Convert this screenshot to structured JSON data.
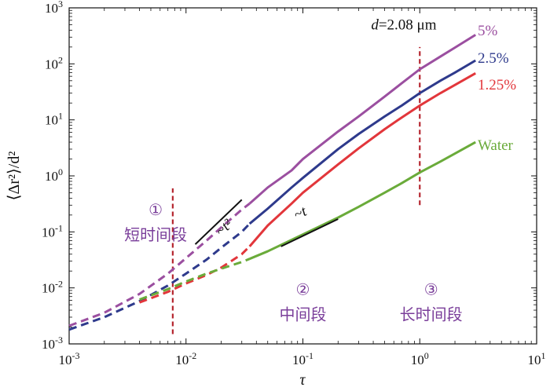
{
  "chart_data": {
    "type": "line",
    "title": "",
    "xlabel": "τ",
    "ylabel": "⟨Δr²⟩/d²",
    "xscale": "log",
    "yscale": "log",
    "xlim": [
      0.001,
      10
    ],
    "ylim": [
      0.001,
      1000
    ],
    "x_ticks": [
      {
        "value": 0.001,
        "base": "10",
        "exp": "-3"
      },
      {
        "value": 0.01,
        "base": "10",
        "exp": "-2"
      },
      {
        "value": 0.1,
        "base": "10",
        "exp": "-1"
      },
      {
        "value": 1,
        "base": "10",
        "exp": "0"
      },
      {
        "value": 10,
        "base": "10",
        "exp": "1"
      }
    ],
    "y_ticks": [
      {
        "value": 0.001,
        "base": "10",
        "exp": "-3"
      },
      {
        "value": 0.01,
        "base": "10",
        "exp": "-2"
      },
      {
        "value": 0.1,
        "base": "10",
        "exp": "-1"
      },
      {
        "value": 1,
        "base": "10",
        "exp": "0"
      },
      {
        "value": 10,
        "base": "10",
        "exp": "1"
      },
      {
        "value": 100,
        "base": "10",
        "exp": "2"
      },
      {
        "value": 1000,
        "base": "10",
        "exp": "3"
      }
    ],
    "series": [
      {
        "name": "5%",
        "color": "#9b4fa0",
        "dashed_until": 0.035,
        "points": [
          [
            0.001,
            0.0021
          ],
          [
            0.002,
            0.0036
          ],
          [
            0.004,
            0.0078
          ],
          [
            0.007,
            0.018
          ],
          [
            0.01,
            0.034
          ],
          [
            0.015,
            0.07
          ],
          [
            0.02,
            0.12
          ],
          [
            0.03,
            0.25
          ],
          [
            0.035,
            0.32
          ],
          [
            0.05,
            0.62
          ],
          [
            0.08,
            1.25
          ],
          [
            0.1,
            2.0
          ],
          [
            0.2,
            6.2
          ],
          [
            0.3,
            11.5
          ],
          [
            0.5,
            26
          ],
          [
            0.7,
            45
          ],
          [
            1.0,
            80
          ],
          [
            1.5,
            135
          ],
          [
            2.0,
            195
          ],
          [
            3.0,
            330
          ]
        ]
      },
      {
        "name": "2.5%",
        "color": "#2e3a8c",
        "dashed_until": 0.035,
        "points": [
          [
            0.001,
            0.0018
          ],
          [
            0.002,
            0.003
          ],
          [
            0.004,
            0.0058
          ],
          [
            0.007,
            0.011
          ],
          [
            0.01,
            0.018
          ],
          [
            0.015,
            0.032
          ],
          [
            0.02,
            0.052
          ],
          [
            0.03,
            0.1
          ],
          [
            0.035,
            0.14
          ],
          [
            0.05,
            0.26
          ],
          [
            0.08,
            0.62
          ],
          [
            0.1,
            0.92
          ],
          [
            0.2,
            3.0
          ],
          [
            0.3,
            5.6
          ],
          [
            0.5,
            11.5
          ],
          [
            0.7,
            18
          ],
          [
            1.0,
            30
          ],
          [
            1.5,
            50
          ],
          [
            2.0,
            70
          ],
          [
            3.0,
            115
          ]
        ]
      },
      {
        "name": "1.25%",
        "color": "#e2363b",
        "dashed_until": 0.035,
        "points": [
          [
            0.004,
            0.0055
          ],
          [
            0.007,
            0.0085
          ],
          [
            0.01,
            0.012
          ],
          [
            0.015,
            0.017
          ],
          [
            0.02,
            0.023
          ],
          [
            0.03,
            0.04
          ],
          [
            0.035,
            0.055
          ],
          [
            0.05,
            0.13
          ],
          [
            0.08,
            0.32
          ],
          [
            0.1,
            0.5
          ],
          [
            0.2,
            1.6
          ],
          [
            0.3,
            3.1
          ],
          [
            0.5,
            6.8
          ],
          [
            0.7,
            11
          ],
          [
            1.0,
            18
          ],
          [
            1.5,
            30
          ],
          [
            2.0,
            42
          ],
          [
            3.0,
            68
          ]
        ]
      },
      {
        "name": "Water",
        "color": "#6aab3a",
        "dashed_until": 0.035,
        "points": [
          [
            0.004,
            0.0062
          ],
          [
            0.007,
            0.0095
          ],
          [
            0.01,
            0.013
          ],
          [
            0.015,
            0.018
          ],
          [
            0.02,
            0.022
          ],
          [
            0.03,
            0.029
          ],
          [
            0.035,
            0.033
          ],
          [
            0.05,
            0.045
          ],
          [
            0.1,
            0.09
          ],
          [
            0.2,
            0.18
          ],
          [
            0.3,
            0.28
          ],
          [
            0.5,
            0.5
          ],
          [
            0.7,
            0.74
          ],
          [
            1.0,
            1.15
          ],
          [
            1.5,
            1.8
          ],
          [
            2.0,
            2.5
          ],
          [
            3.0,
            4.0
          ]
        ]
      }
    ],
    "legend": [
      {
        "label": "5%",
        "color": "#9b4fa0"
      },
      {
        "label": "2.5%",
        "color": "#2e3a8c"
      },
      {
        "label": "1.25%",
        "color": "#e2363b"
      },
      {
        "label": "Water",
        "color": "#6aab3a"
      }
    ],
    "vertical_lines": [
      {
        "x": 0.0077,
        "color": "#b5262f",
        "y_from": 0.0015,
        "y_to": 0.6
      },
      {
        "x": 1.0,
        "color": "#b5262f",
        "y_from": 0.3,
        "y_to": 200
      }
    ],
    "slope_guides": [
      {
        "label": "~t²",
        "x1": 0.012,
        "x2": 0.03,
        "slope": 2,
        "y_at_x1": 0.06
      },
      {
        "label": "~t",
        "x1": 0.065,
        "x2": 0.2,
        "slope": 1,
        "y_at_x1": 0.055
      }
    ],
    "annotations": [
      {
        "id": "diameter",
        "text": "d=2.08 μm",
        "var": "d",
        "rest": "=2.08 μm",
        "x": 0.73,
        "y": 500
      },
      {
        "id": "region1",
        "symbol": "①",
        "text": "短时间段",
        "x": 0.0055,
        "y": 0.2
      },
      {
        "id": "region2",
        "symbol": "②",
        "text": "中间段",
        "x": 0.1,
        "y": 0.0075
      },
      {
        "id": "region3",
        "symbol": "③",
        "text": "长时间段",
        "x": 1.25,
        "y": 0.0075
      }
    ]
  }
}
